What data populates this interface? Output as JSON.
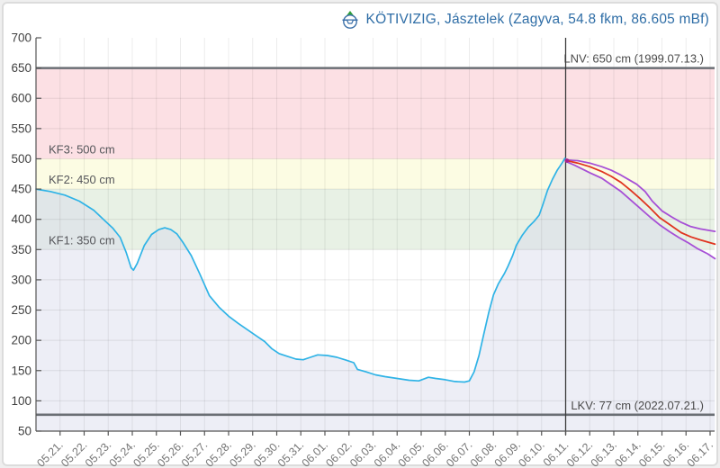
{
  "title": {
    "text": "KÖTIVIZIG, Jásztelek (Zagyva, 54.8 fkm, 86.605 mBf)",
    "color": "#2e6da6",
    "icon": "water-gauge-station-icon",
    "icon_colors": {
      "triangle": "#2e9e3a",
      "outline": "#3a6fa8"
    }
  },
  "chart_data": {
    "type": "line",
    "title": "Water level with forecast",
    "unit": "cm",
    "y_axis": {
      "min": 50,
      "max": 700,
      "step": 50
    },
    "x_axis": {
      "tick_labels": [
        "05.21.",
        "05.22.",
        "05.23.",
        "05.24.",
        "05.25.",
        "05.26.",
        "05.27.",
        "05.28.",
        "05.29.",
        "05.30.",
        "05.31.",
        "06.01.",
        "06.02.",
        "06.03.",
        "06.04.",
        "06.05.",
        "06.06.",
        "06.07.",
        "06.08.",
        "06.09.",
        "06.10.",
        "06.11.",
        "06.12.",
        "06.13.",
        "06.14.",
        "06.15.",
        "06.16.",
        "06.17."
      ]
    },
    "bands": [
      {
        "name": "kf3-zone",
        "from": 500,
        "to": 650,
        "color": "#fce0e4"
      },
      {
        "name": "kf2-zone",
        "from": 450,
        "to": 500,
        "color": "#fcfce3"
      },
      {
        "name": "kf1-zone",
        "from": 350,
        "to": 450,
        "color": "#e8f1e5"
      }
    ],
    "threshold_labels": [
      {
        "label": "KF3: 500 cm",
        "value": 500
      },
      {
        "label": "KF2: 450 cm",
        "value": 450
      },
      {
        "label": "KF1: 350 cm",
        "value": 350
      }
    ],
    "reference_lines": [
      {
        "name": "LNV",
        "label": "LNV: 650 cm (1999.07.13.)",
        "value": 650,
        "color": "#6a6e74"
      },
      {
        "name": "LKV",
        "label": "LKV: 77 cm (2022.07.21.)",
        "value": 77,
        "color": "#6a6e74"
      }
    ],
    "now_line": {
      "at_label": "06.11.",
      "day": 22,
      "color": "#3c3c3c"
    },
    "grid": true,
    "series": [
      {
        "name": "observed-level",
        "color": "#2fb3e6",
        "width": 1.7,
        "fill_color": "rgba(214,217,236,0.45)",
        "points": [
          [
            0,
            450
          ],
          [
            0.6,
            446
          ],
          [
            1.2,
            440
          ],
          [
            1.8,
            430
          ],
          [
            2.4,
            415
          ],
          [
            2.8,
            400
          ],
          [
            3.2,
            385
          ],
          [
            3.5,
            370
          ],
          [
            3.75,
            345
          ],
          [
            3.95,
            320
          ],
          [
            4.05,
            316
          ],
          [
            4.2,
            327
          ],
          [
            4.5,
            357
          ],
          [
            4.8,
            375
          ],
          [
            5.1,
            383
          ],
          [
            5.35,
            386
          ],
          [
            5.6,
            383
          ],
          [
            5.85,
            376
          ],
          [
            6.1,
            362
          ],
          [
            6.45,
            340
          ],
          [
            6.8,
            310
          ],
          [
            7.2,
            274
          ],
          [
            7.6,
            255
          ],
          [
            8.0,
            240
          ],
          [
            8.4,
            228
          ],
          [
            8.8,
            217
          ],
          [
            9.2,
            206
          ],
          [
            9.5,
            198
          ],
          [
            9.8,
            186
          ],
          [
            10.1,
            178
          ],
          [
            10.4,
            174
          ],
          [
            10.8,
            169
          ],
          [
            11.1,
            168
          ],
          [
            11.4,
            172
          ],
          [
            11.7,
            176
          ],
          [
            12.1,
            175
          ],
          [
            12.5,
            172
          ],
          [
            12.9,
            167
          ],
          [
            13.2,
            163
          ],
          [
            13.35,
            152
          ],
          [
            13.7,
            148
          ],
          [
            14.1,
            143
          ],
          [
            14.5,
            140
          ],
          [
            15.0,
            137
          ],
          [
            15.5,
            134
          ],
          [
            15.9,
            133
          ],
          [
            16.3,
            139
          ],
          [
            16.6,
            137
          ],
          [
            17.0,
            135
          ],
          [
            17.4,
            132
          ],
          [
            17.8,
            131
          ],
          [
            18.0,
            133
          ],
          [
            18.2,
            148
          ],
          [
            18.4,
            175
          ],
          [
            18.6,
            210
          ],
          [
            18.8,
            245
          ],
          [
            19.0,
            275
          ],
          [
            19.2,
            293
          ],
          [
            19.45,
            310
          ],
          [
            19.6,
            322
          ],
          [
            19.8,
            340
          ],
          [
            19.95,
            357
          ],
          [
            20.2,
            374
          ],
          [
            20.45,
            387
          ],
          [
            20.7,
            397
          ],
          [
            20.9,
            407
          ],
          [
            21.05,
            424
          ],
          [
            21.25,
            448
          ],
          [
            21.45,
            466
          ],
          [
            21.65,
            481
          ],
          [
            21.85,
            493
          ],
          [
            21.97,
            501
          ],
          [
            22.05,
            496
          ]
        ]
      },
      {
        "name": "forecast-upper",
        "color": "#a64fd6",
        "width": 1.8,
        "points": [
          [
            22.05,
            498
          ],
          [
            22.5,
            497
          ],
          [
            23.0,
            493
          ],
          [
            23.5,
            487
          ],
          [
            23.9,
            481
          ],
          [
            24.3,
            473
          ],
          [
            24.6,
            466
          ],
          [
            24.95,
            458
          ],
          [
            25.3,
            446
          ],
          [
            25.6,
            430
          ],
          [
            26.0,
            414
          ],
          [
            26.4,
            404
          ],
          [
            26.8,
            395
          ],
          [
            27.2,
            388
          ],
          [
            27.6,
            384
          ],
          [
            28.2,
            380
          ]
        ]
      },
      {
        "name": "forecast-median",
        "color": "#e03420",
        "width": 1.8,
        "points": [
          [
            22.05,
            497
          ],
          [
            22.5,
            493
          ],
          [
            23.0,
            487
          ],
          [
            23.5,
            479
          ],
          [
            23.9,
            471
          ],
          [
            24.3,
            461
          ],
          [
            24.7,
            448
          ],
          [
            25.1,
            434
          ],
          [
            25.5,
            419
          ],
          [
            25.9,
            403
          ],
          [
            26.3,
            392
          ],
          [
            26.8,
            378
          ],
          [
            27.2,
            371
          ],
          [
            27.6,
            366
          ],
          [
            28.2,
            359
          ]
        ]
      },
      {
        "name": "forecast-lower",
        "color": "#a64fd6",
        "width": 1.8,
        "points": [
          [
            22.05,
            495
          ],
          [
            22.4,
            489
          ],
          [
            23.0,
            477
          ],
          [
            23.5,
            468
          ],
          [
            23.9,
            457
          ],
          [
            24.3,
            446
          ],
          [
            24.7,
            432
          ],
          [
            25.1,
            418
          ],
          [
            25.5,
            404
          ],
          [
            25.9,
            391
          ],
          [
            26.3,
            380
          ],
          [
            26.7,
            370
          ],
          [
            27.1,
            361
          ],
          [
            27.5,
            351
          ],
          [
            27.9,
            343
          ],
          [
            28.2,
            335
          ]
        ]
      }
    ],
    "now_marker": {
      "day": 22.05,
      "value": 497,
      "color": "#a8228c"
    }
  }
}
